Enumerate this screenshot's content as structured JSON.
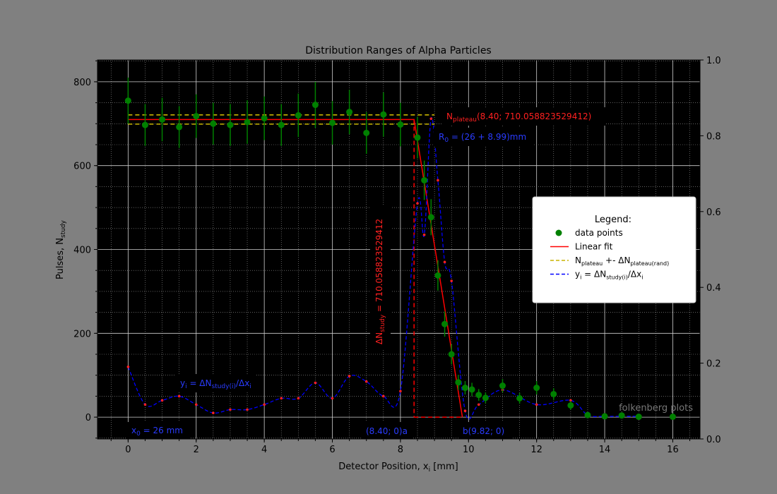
{
  "chart_data": {
    "type": "scatter",
    "title": "Distribution Ranges of Alpha Particles",
    "xlabel": "Detector Position, x",
    "xlabel_sub": "i",
    "xlabel_unit": " [mm]",
    "ylabel": "Pulses, N",
    "ylabel_sub": "study",
    "xlim": [
      -0.9,
      16.8
    ],
    "ylim": [
      -52,
      852
    ],
    "right_ylim": [
      0.0,
      1.0
    ],
    "x_ticks": [
      0,
      2,
      4,
      6,
      8,
      10,
      12,
      14,
      16
    ],
    "y_ticks": [
      0,
      200,
      400,
      600,
      800
    ],
    "right_ticks": [
      "0.0",
      "0.2",
      "0.4",
      "0.6",
      "0.8",
      "1.0"
    ],
    "grid": true,
    "legend_position": "center-right",
    "legend": {
      "title": "Legend:",
      "entries": [
        {
          "kind": "marker",
          "color": "#008000",
          "text": "data points",
          "sub": "",
          "tail": ""
        },
        {
          "kind": "line",
          "color": "#ff0000",
          "text": "Linear fit",
          "sub": "",
          "tail": ""
        },
        {
          "kind": "dash",
          "color": "#c8b400",
          "text": "N",
          "sub": "plateau",
          "tail": " +- ΔN",
          "sub2": "plateau(rand)"
        },
        {
          "kind": "dash",
          "color": "#0000ff",
          "text": "y",
          "sub": "i",
          "tail": " = ΔN",
          "sub2": "study(i)",
          "tail2": "/Δx",
          "sub3": "i"
        }
      ]
    },
    "series": [
      {
        "name": "data points",
        "color": "#008000",
        "x": [
          0,
          0.5,
          1,
          1.5,
          2,
          2.5,
          3,
          3.5,
          4,
          4.5,
          5,
          5.5,
          6,
          6.5,
          7,
          7.5,
          8,
          8.5,
          8.7,
          8.9,
          9.1,
          9.3,
          9.5,
          9.7,
          9.9,
          10.1,
          10.3,
          10.5,
          11,
          11.5,
          12,
          12.5,
          13,
          13.5,
          14,
          14.5,
          15,
          16
        ],
        "y": [
          755,
          697,
          710,
          692,
          718,
          700,
          697,
          704,
          713,
          697,
          720,
          745,
          702,
          728,
          678,
          722,
          698,
          667,
          565,
          477,
          338,
          222,
          150,
          83,
          70,
          66,
          53,
          46,
          75,
          45,
          70,
          55,
          28,
          5,
          2,
          4,
          1,
          1
        ],
        "err": [
          55,
          50,
          52,
          50,
          52,
          50,
          50,
          52,
          52,
          50,
          52,
          55,
          52,
          53,
          50,
          53,
          52,
          50,
          47,
          43,
          36,
          30,
          24,
          18,
          16,
          16,
          14,
          13,
          16,
          13,
          16,
          14,
          10,
          4,
          3,
          3,
          2,
          2
        ]
      },
      {
        "name": "Linear fit",
        "color": "#ff0000",
        "x": [
          0,
          8.4,
          9.82
        ],
        "y": [
          710.058823529412,
          710.058823529412,
          0
        ]
      },
      {
        "name": "N_plateau +- ΔN_plateau(rand)",
        "color": "#c8b400",
        "x": [
          0,
          9.0
        ],
        "upper": 721,
        "lower": 699
      },
      {
        "name": "y_i = ΔN_study(i)/Δx_i",
        "color": "#0000ff",
        "x": [
          0,
          0.5,
          1,
          1.5,
          2,
          2.5,
          3,
          3.5,
          4,
          4.5,
          5,
          5.5,
          6,
          6.5,
          7,
          7.5,
          8,
          8.5,
          8.7,
          8.9,
          9.1,
          9.3,
          9.5,
          9.9,
          10.3,
          11,
          12,
          13,
          13.5,
          14,
          14.5,
          15
        ],
        "y": [
          120,
          30,
          40,
          50,
          30,
          10,
          18,
          18,
          30,
          45,
          45,
          82,
          45,
          98,
          85,
          50,
          62,
          510,
          435,
          712,
          565,
          370,
          325,
          15,
          30,
          65,
          30,
          40,
          5,
          2,
          2,
          2
        ]
      }
    ],
    "rectangle": {
      "x0": 8.4,
      "x1": 9.82,
      "y0": 0,
      "y1": 710.058823529412,
      "color": "#ff0000"
    },
    "annotations": {
      "n_plateau_main": "N",
      "n_plateau_sub": "plateau",
      "n_plateau_tail": "(8.40; 710.058823529412)",
      "r0_main": "R",
      "r0_sub": "0",
      "r0_tail": " = (26 + 8.99)mm",
      "delta_n_main": "ΔN",
      "delta_n_sub": "study",
      "delta_n_tail": " = 710.058823529412",
      "yi_main": "y",
      "yi_sub": "i",
      "yi_tail": " = ΔN",
      "yi_sub2": "study(i)",
      "yi_tail2": "/Δx",
      "yi_sub3": "i",
      "x0_main": "x",
      "x0_sub": "0",
      "x0_tail": " = 26 mm",
      "a_label": "(8.40; 0)a",
      "b_label": "b(9.82; 0)",
      "watermark": "folkenberg plots"
    }
  }
}
